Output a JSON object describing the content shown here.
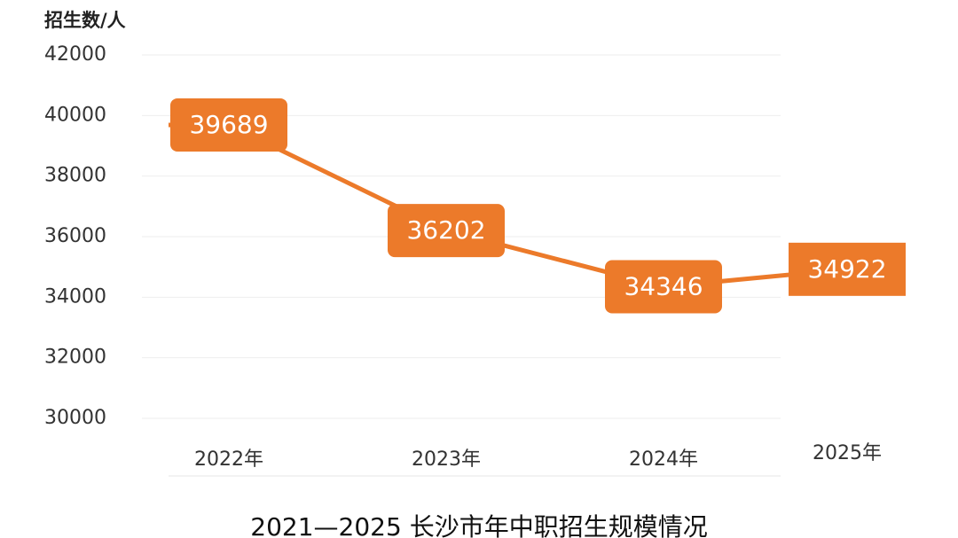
{
  "chart_data": {
    "type": "line",
    "title": "2021—2025 长沙市年中职招生规模情况",
    "y_axis_label": "招生数/人",
    "categories": [
      "2022年",
      "2023年",
      "2024年",
      "2025年"
    ],
    "values": [
      39689,
      36202,
      34346,
      34922
    ],
    "color": "#ec7a2a",
    "ylim": [
      30000,
      42000
    ],
    "yticks": [
      30000,
      32000,
      34000,
      36000,
      38000,
      40000,
      42000
    ],
    "grid": true
  }
}
